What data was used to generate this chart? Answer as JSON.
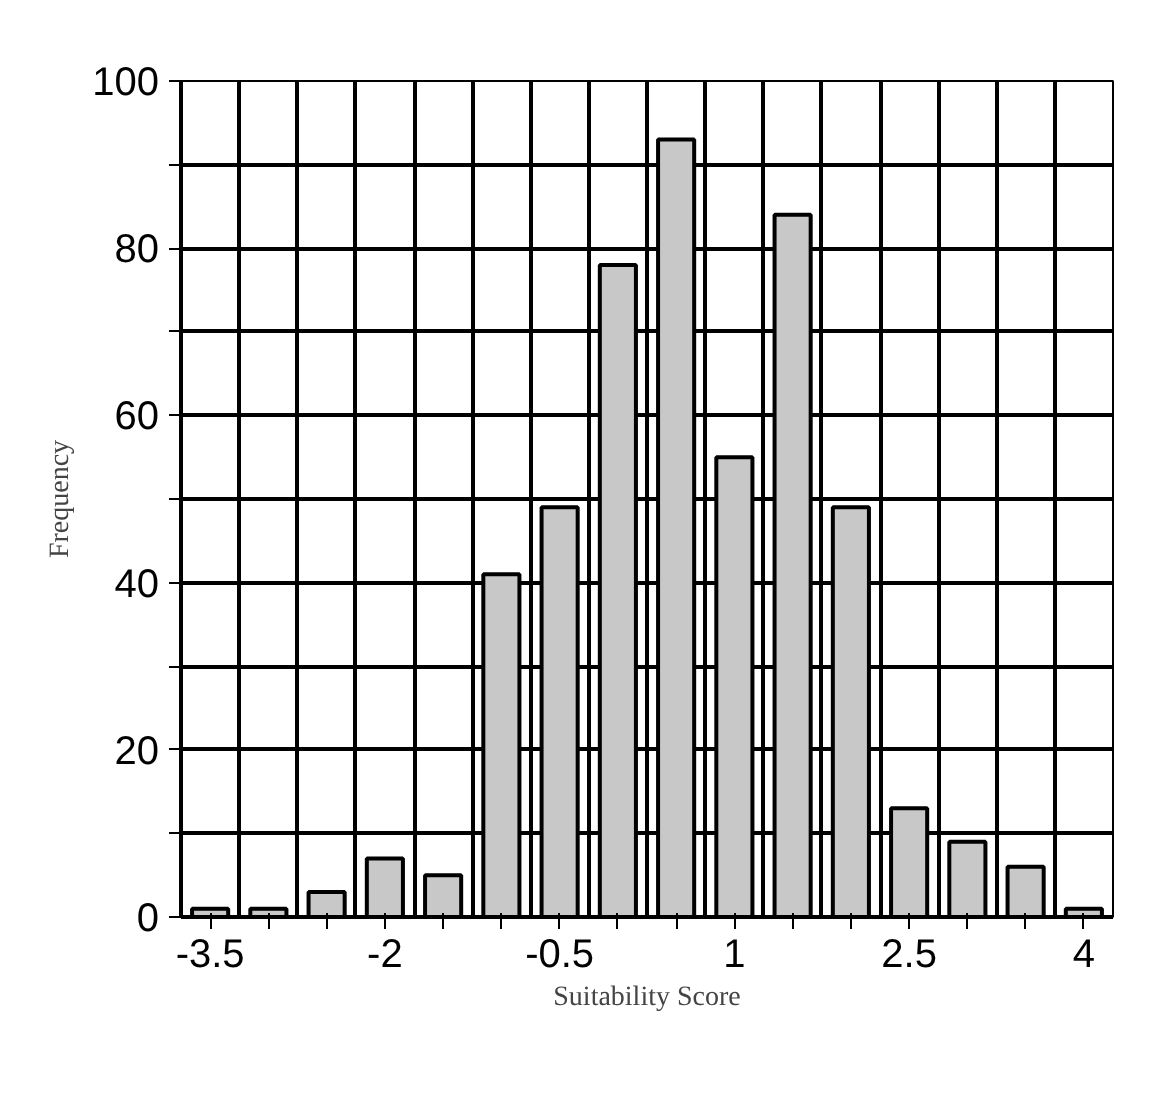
{
  "chart_data": {
    "type": "bar",
    "xlabel": "Suitability Score",
    "ylabel": "Frequency",
    "categories": [
      "-3.5",
      null,
      null,
      "-2",
      null,
      null,
      "-0.5",
      null,
      null,
      "1",
      null,
      null,
      "2.5",
      null,
      null,
      "4"
    ],
    "values": [
      1,
      1,
      3,
      7,
      5,
      41,
      49,
      78,
      93,
      55,
      84,
      49,
      13,
      9,
      6,
      1
    ],
    "color": "#c8c8c8",
    "ylim": [
      0,
      100
    ],
    "yticks": [
      0,
      {
        "value": 10,
        "label": null
      },
      20,
      {
        "value": 30,
        "label": null
      },
      40,
      {
        "value": 50,
        "label": null
      },
      60,
      {
        "value": 70,
        "label": null
      },
      80,
      {
        "value": 90,
        "label": null
      },
      100
    ],
    "grid": true
  }
}
